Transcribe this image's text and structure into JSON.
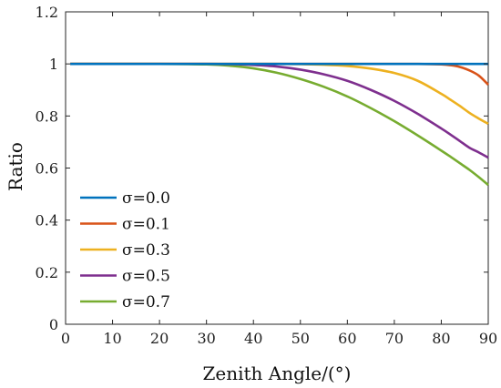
{
  "chart_data": {
    "type": "line",
    "title": "",
    "xlabel": "Zenith Angle/(°)",
    "ylabel": "Ratio",
    "xlim": [
      0,
      90
    ],
    "ylim": [
      0,
      1.2
    ],
    "xticks": [
      0,
      10,
      20,
      30,
      40,
      50,
      60,
      70,
      80,
      90
    ],
    "yticks": [
      0,
      0.2,
      0.4,
      0.6,
      0.8,
      1,
      1.2
    ],
    "xtick_labels": [
      "0",
      "10",
      "20",
      "30",
      "40",
      "50",
      "60",
      "70",
      "80",
      "90"
    ],
    "ytick_labels": [
      "0",
      "0.2",
      "0.4",
      "0.6",
      "0.8",
      "1",
      "1.2"
    ],
    "grid": false,
    "legend_position": "bottom-left",
    "x": [
      1,
      10,
      20,
      30,
      35,
      40,
      45,
      50,
      55,
      60,
      65,
      70,
      75,
      80,
      82,
      84,
      86,
      88,
      90
    ],
    "series": [
      {
        "name": "σ=0.0",
        "color": "#0072BD",
        "values": [
          1,
          1,
          1,
          1,
          1,
          1,
          1,
          1,
          1,
          1,
          1,
          1,
          1,
          1,
          1,
          1,
          1,
          1,
          1
        ]
      },
      {
        "name": "σ=0.1",
        "color": "#D95319",
        "values": [
          1,
          1,
          1,
          1,
          1,
          1,
          1,
          1,
          1,
          1,
          1,
          1,
          1,
          0.998,
          0.995,
          0.988,
          0.975,
          0.955,
          0.92
        ]
      },
      {
        "name": "σ=0.3",
        "color": "#EDB120",
        "values": [
          1,
          1,
          1,
          1,
          1,
          1,
          1,
          0.999,
          0.997,
          0.992,
          0.982,
          0.965,
          0.935,
          0.885,
          0.862,
          0.838,
          0.812,
          0.79,
          0.77
        ]
      },
      {
        "name": "σ=0.5",
        "color": "#7E2F8E",
        "values": [
          1,
          1,
          1,
          1,
          0.999,
          0.996,
          0.99,
          0.978,
          0.96,
          0.935,
          0.9,
          0.858,
          0.808,
          0.752,
          0.728,
          0.703,
          0.678,
          0.66,
          0.64
        ]
      },
      {
        "name": "σ=0.7",
        "color": "#77AC30",
        "values": [
          1,
          1,
          1,
          0.998,
          0.993,
          0.983,
          0.966,
          0.942,
          0.912,
          0.875,
          0.83,
          0.78,
          0.725,
          0.667,
          0.643,
          0.618,
          0.593,
          0.565,
          0.535
        ]
      }
    ]
  }
}
